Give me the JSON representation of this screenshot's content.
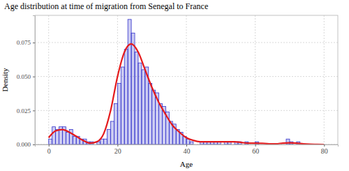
{
  "chart_data": {
    "type": "histogram",
    "title": "Age distribution at time of migration from Senegal to France",
    "x_label": "Age",
    "y_label": "Density",
    "bins": [
      0,
      1,
      2,
      3,
      4,
      5,
      6,
      7,
      8,
      9,
      10,
      11,
      12,
      13,
      14,
      15,
      16,
      17,
      18,
      19,
      20,
      21,
      22,
      23,
      24,
      25,
      26,
      27,
      28,
      29,
      30,
      31,
      32,
      33,
      34,
      35,
      36,
      37,
      38,
      39,
      40,
      41,
      42,
      43,
      44,
      45,
      46,
      47,
      48,
      49,
      50,
      51,
      52,
      53,
      54,
      55,
      56,
      57,
      58,
      59,
      60,
      61,
      62,
      63,
      64,
      65,
      66,
      67,
      68,
      69,
      70,
      71,
      72,
      73
    ],
    "values": [
      0.004,
      0.013,
      0.011,
      0.013,
      0.013,
      0.009,
      0.011,
      0.006,
      0.006,
      0.004,
      0.004,
      0.002,
      0.002,
      0.0,
      0.002,
      0.004,
      0.004,
      0.011,
      0.017,
      0.03,
      0.045,
      0.057,
      0.07,
      0.092,
      0.082,
      0.068,
      0.06,
      0.055,
      0.057,
      0.045,
      0.04,
      0.038,
      0.03,
      0.028,
      0.024,
      0.017,
      0.015,
      0.011,
      0.009,
      0.006,
      0.004,
      0.002,
      0.0,
      0.0,
      0.002,
      0.002,
      0.002,
      0.002,
      0.002,
      0.002,
      0.0,
      0.002,
      0.002,
      0.0,
      0.002,
      0.002,
      0.0,
      0.002,
      0.0,
      0.0,
      0.002,
      0.0,
      0.0,
      0.0,
      0.0,
      0.0,
      0.0,
      0.0,
      0.0,
      0.004,
      0.002,
      0.0,
      0.002
    ],
    "color": "#3333cc",
    "series": [
      {
        "type": "line",
        "color": "#e41a1c",
        "x": [
          0,
          2,
          4,
          6,
          8,
          10,
          12,
          14,
          16,
          18,
          20,
          22,
          24,
          26,
          28,
          30,
          32,
          34,
          36,
          38,
          40,
          42,
          44,
          46,
          48,
          50,
          52,
          54,
          56,
          58,
          60,
          62,
          64,
          66,
          68,
          70,
          72,
          74,
          76,
          78,
          80
        ],
        "values": [
          0.005,
          0.01,
          0.011,
          0.009,
          0.006,
          0.003,
          0.001,
          0.002,
          0.008,
          0.025,
          0.05,
          0.068,
          0.074,
          0.068,
          0.055,
          0.042,
          0.031,
          0.022,
          0.014,
          0.009,
          0.005,
          0.003,
          0.002,
          0.002,
          0.002,
          0.002,
          0.002,
          0.002,
          0.0015,
          0.001,
          0.001,
          0.0008,
          0.0005,
          0.0005,
          0.001,
          0.0012,
          0.001,
          0.0005,
          0.0002,
          0.0001,
          0.0
        ]
      }
    ],
    "xlim": [
      -4,
      84
    ],
    "ylim": [
      0,
      0.095
    ],
    "xticks": [
      0,
      20,
      40,
      60,
      80
    ],
    "yticks": [
      {
        "value": 0,
        "label": "0.000"
      },
      {
        "value": 0.025,
        "label": "0.025"
      },
      {
        "value": 0.05,
        "label": "0.050"
      },
      {
        "value": 0.075,
        "label": "0.075"
      }
    ],
    "grid": true
  }
}
